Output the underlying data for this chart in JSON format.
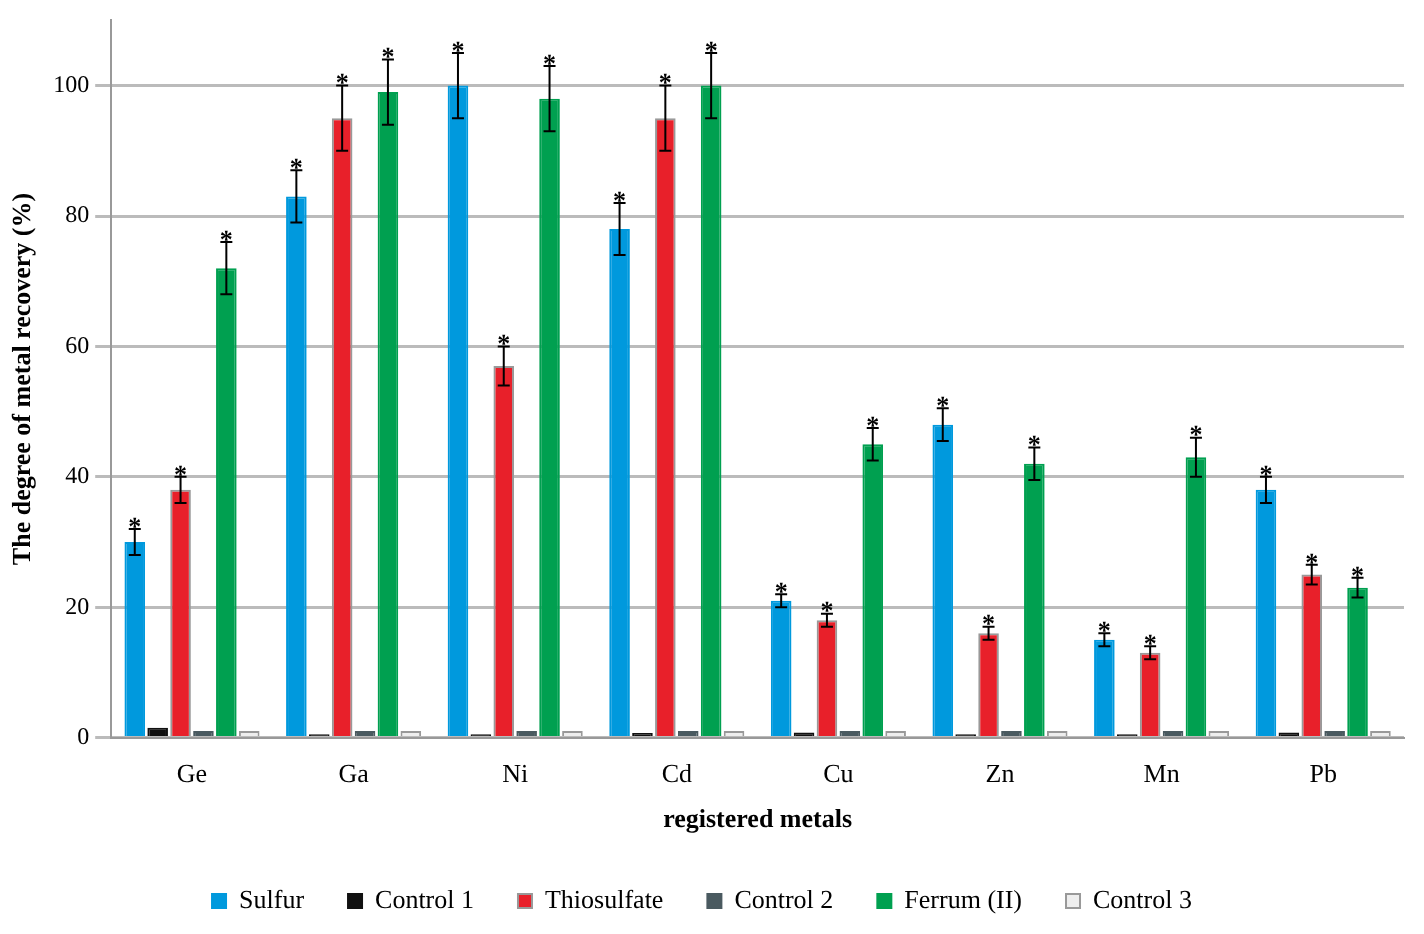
{
  "chart_data": {
    "type": "bar",
    "xlabel": "registered metals",
    "ylabel": "The degree of metal recovery (%)",
    "categories": [
      "Ge",
      "Ga",
      "Ni",
      "Cd",
      "Cu",
      "Zn",
      "Mn",
      "Pb"
    ],
    "ylim": [
      0,
      110
    ],
    "yticks": [
      0,
      20,
      40,
      60,
      80,
      100
    ],
    "grid": "y",
    "legend": "bottom",
    "series": [
      {
        "name": "Sulfur",
        "color": "#0099dd",
        "values": [
          30,
          83,
          100,
          78,
          21,
          48,
          15,
          38
        ],
        "errors": [
          2,
          4,
          5,
          4,
          1,
          2.5,
          1,
          2
        ],
        "value_labels": [
          "*",
          "*",
          "*",
          "*",
          "*",
          "*",
          "*",
          "*"
        ]
      },
      {
        "name": "Control 1",
        "color": "#111111",
        "values": [
          1.5,
          0.5,
          0.5,
          0.7,
          0.8,
          0.5,
          0.5,
          0.8
        ]
      },
      {
        "name": "Thiosulfate",
        "color": "#e8202a",
        "values": [
          38,
          95,
          57,
          95,
          18,
          16,
          13,
          25
        ],
        "errors": [
          2,
          5,
          3,
          5,
          1,
          1,
          1,
          1.5
        ],
        "value_labels": [
          "*",
          "*",
          "*",
          "*",
          "*",
          "*",
          "*",
          "*"
        ]
      },
      {
        "name": "Control 2",
        "color": "#4a5a60",
        "values": [
          1,
          1,
          1,
          1,
          1,
          1,
          1,
          1
        ]
      },
      {
        "name": "Ferrum (II)",
        "color": "#00a050",
        "values": [
          72,
          99,
          98,
          100,
          45,
          42,
          43,
          23
        ],
        "errors": [
          4,
          5,
          5,
          5,
          2.5,
          2.5,
          3,
          1.5
        ],
        "value_labels": [
          "*",
          "*",
          "*",
          "*",
          "*",
          "*",
          "*",
          "*"
        ]
      },
      {
        "name": "Control 3",
        "color": "#eeeeee",
        "values": [
          1,
          1,
          1,
          1,
          1,
          1,
          1,
          1
        ]
      }
    ]
  }
}
